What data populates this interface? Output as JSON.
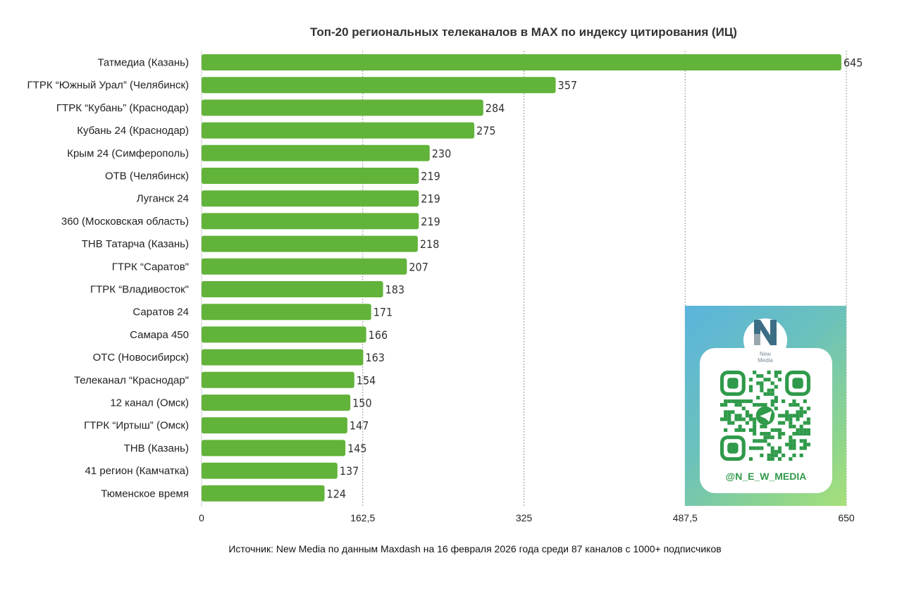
{
  "chart_data": {
    "type": "bar",
    "orientation": "horizontal",
    "title": "Топ-20 региональных телеканалов в MAX по индексу цитирования (ИЦ)",
    "categories": [
      "Татмедиа (Казань)",
      "ГТРК “Южный Урал” (Челябинск)",
      "ГТРК “Кубань” (Краснодар)",
      "Кубань 24 (Краснодар)",
      "Крым 24 (Симферополь)",
      "ОТВ (Челябинск)",
      "Луганск 24",
      "360 (Московская область)",
      "ТНВ Татарча (Казань)",
      "ГТРК “Саратов\"",
      "ГТРК “Владивосток\"",
      "Саратов 24",
      "Самара 450",
      "ОТС (Новосибирск)",
      "Телеканал “Краснодар\"",
      "12 канал (Омск)",
      "ГТРК “Иртыш” (Омск)",
      "ТНВ (Казань)",
      "41 регион (Камчатка)",
      "Тюменское время"
    ],
    "values": [
      645,
      357,
      284,
      275,
      230,
      219,
      219,
      219,
      218,
      207,
      183,
      171,
      166,
      163,
      154,
      150,
      147,
      145,
      137,
      124
    ],
    "xlim": [
      0,
      650
    ],
    "ticks": [
      0,
      162.5,
      325,
      487.5,
      650
    ],
    "tick_labels": [
      "0",
      "162,5",
      "325",
      "487,5",
      "650"
    ],
    "grid": true,
    "xlabel": "",
    "ylabel": "",
    "color": "#62b33a"
  },
  "source": "Источник: New Media по данным Maxdash на 16 февраля 2026 года среди 87 каналов с 1000+ подписчиков",
  "promo": {
    "logo_text_1": "New",
    "logo_text_2": "Media",
    "handle": "@N_E_W_MEDIA",
    "qr_icon": "telegram-icon",
    "accent_color": "#2f9a4a"
  }
}
